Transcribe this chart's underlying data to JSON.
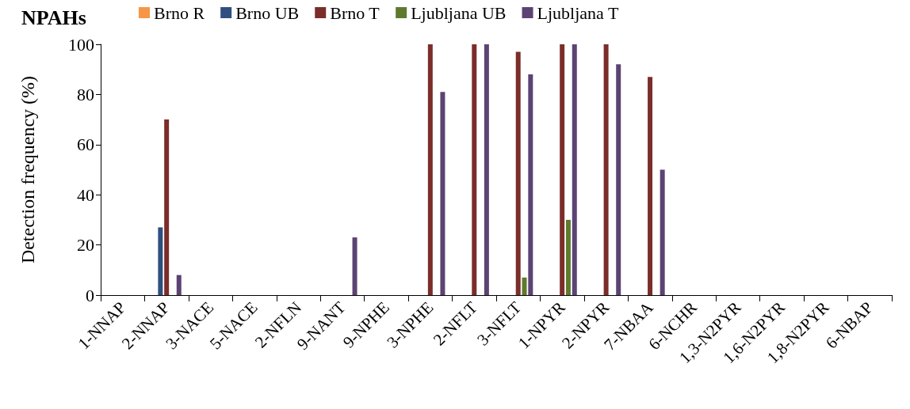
{
  "chart_data": {
    "type": "bar",
    "title": "NPAHs",
    "ylabel": "Detection frequency (%)",
    "categories": [
      "1-NNAP",
      "2-NNAP",
      "3-NACE",
      "5-NACE",
      "2-NFLN",
      "9-NANT",
      "9-NPHE",
      "3-NPHE",
      "2-NFLT",
      "3-NFLT",
      "1-NPYR",
      "2-NPYR",
      "7-NBAA",
      "6-NCHR",
      "1,3-N2PYR",
      "1,6-N2PYR",
      "1,8-N2PYR",
      "6-NBAP"
    ],
    "series": [
      {
        "name": "Brno R",
        "color": "#f79646",
        "values": [
          0,
          0,
          0,
          0,
          0,
          0,
          0,
          0,
          0,
          0,
          0,
          0,
          0,
          0,
          0,
          0,
          0,
          0
        ]
      },
      {
        "name": "Brno UB",
        "color": "#2f4f7f",
        "values": [
          0,
          27,
          0,
          0,
          0,
          0,
          0,
          0,
          0,
          0,
          0,
          0,
          0,
          0,
          0,
          0,
          0,
          0
        ]
      },
      {
        "name": "Brno T",
        "color": "#7b2d2a",
        "values": [
          0,
          70,
          0,
          0,
          0,
          0,
          0,
          100,
          100,
          97,
          100,
          100,
          87,
          0,
          0,
          0,
          0,
          0
        ]
      },
      {
        "name": "Ljubljana UB",
        "color": "#5f7a2e",
        "values": [
          0,
          0,
          0,
          0,
          0,
          0,
          0,
          0,
          0,
          7,
          30,
          0,
          0,
          0,
          0,
          0,
          0,
          0
        ]
      },
      {
        "name": "Ljubljana T",
        "color": "#5b4373",
        "values": [
          0,
          8,
          0,
          0,
          0,
          23,
          0,
          81,
          100,
          88,
          100,
          92,
          50,
          0,
          0,
          0,
          0,
          0
        ]
      }
    ],
    "ylim": [
      0,
      100
    ],
    "yticks": [
      0,
      20,
      40,
      60,
      80,
      100
    ],
    "grid": false,
    "legend": "top"
  }
}
